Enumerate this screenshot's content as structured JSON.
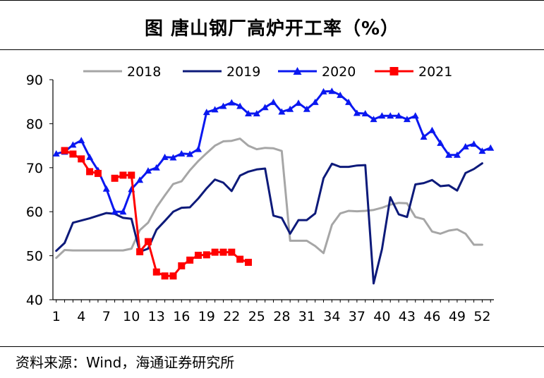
{
  "title": "图  唐山钢厂高炉开工率（%）",
  "source": "资料来源：Wind，海通证券研究所",
  "chart_data": {
    "type": "line",
    "title": "唐山钢厂高炉开工率（%）",
    "xlabel": "",
    "ylabel": "",
    "ylim": [
      40,
      90
    ],
    "yticks": [
      40,
      50,
      60,
      70,
      80,
      90
    ],
    "xlim": [
      1,
      53
    ],
    "xticks": [
      1,
      4,
      7,
      10,
      13,
      16,
      19,
      22,
      25,
      28,
      31,
      34,
      37,
      40,
      43,
      46,
      49,
      52
    ],
    "grid": false,
    "legend": "top",
    "series": [
      {
        "name": "2018",
        "color": "#a6a6a6",
        "marker": "none",
        "x": [
          1,
          2,
          3,
          4,
          5,
          6,
          7,
          8,
          9,
          10,
          11,
          12,
          13,
          14,
          15,
          16,
          17,
          18,
          19,
          20,
          21,
          22,
          23,
          24,
          25,
          26,
          27,
          28,
          29,
          30,
          31,
          32,
          33,
          34,
          35,
          36,
          37,
          38,
          39,
          40,
          41,
          42,
          43,
          44,
          45,
          46,
          47,
          48,
          49,
          50,
          51,
          52
        ],
        "values": [
          49.5,
          51.3,
          51.2,
          51.2,
          51.2,
          51.2,
          51.2,
          51.2,
          51.2,
          51.6,
          55.8,
          57.5,
          61.0,
          63.7,
          66.3,
          66.9,
          69.4,
          71.5,
          73.3,
          75.0,
          76.0,
          76.1,
          76.6,
          75.0,
          74.2,
          74.5,
          74.4,
          73.8,
          53.4,
          53.4,
          53.4,
          52.2,
          50.6,
          57.0,
          59.6,
          60.2,
          60.1,
          60.2,
          60.4,
          60.9,
          61.6,
          62.0,
          61.9,
          58.8,
          58.3,
          55.5,
          55.0,
          55.7,
          56.0,
          55.0,
          52.5,
          52.5
        ]
      },
      {
        "name": "2019",
        "color": "#0d1a7a",
        "marker": "none",
        "x": [
          1,
          2,
          3,
          4,
          5,
          6,
          7,
          8,
          9,
          10,
          11,
          12,
          13,
          14,
          15,
          16,
          17,
          18,
          19,
          20,
          21,
          22,
          23,
          24,
          25,
          26,
          27,
          28,
          29,
          30,
          31,
          32,
          33,
          34,
          35,
          36,
          37,
          38,
          39,
          40,
          41,
          42,
          43,
          44,
          45,
          46,
          47,
          48,
          49,
          50,
          51,
          52
        ],
        "values": [
          51.1,
          52.9,
          57.5,
          58.0,
          58.5,
          59.1,
          59.7,
          59.5,
          58.6,
          58.4,
          50.9,
          51.6,
          55.9,
          57.9,
          60.0,
          60.9,
          61.0,
          63.0,
          65.3,
          67.3,
          66.6,
          64.7,
          68.2,
          69.1,
          69.6,
          69.8,
          59.1,
          58.6,
          55.0,
          58.1,
          58.1,
          59.6,
          67.6,
          70.9,
          70.2,
          70.2,
          70.5,
          70.6,
          43.7,
          51.5,
          63.3,
          59.4,
          58.8,
          66.2,
          66.5,
          67.2,
          65.8,
          66.0,
          64.8,
          68.8,
          69.7,
          71.0
        ]
      },
      {
        "name": "2020",
        "color": "#0a18f0",
        "marker": "triangle",
        "x": [
          1,
          2,
          3,
          4,
          5,
          6,
          7,
          8,
          9,
          10,
          11,
          12,
          13,
          14,
          15,
          16,
          17,
          18,
          19,
          20,
          21,
          22,
          23,
          24,
          25,
          26,
          27,
          28,
          29,
          30,
          31,
          32,
          33,
          34,
          35,
          36,
          37,
          38,
          39,
          40,
          41,
          42,
          43,
          44,
          45,
          46,
          47,
          48,
          49,
          50,
          51,
          52,
          53
        ],
        "values": [
          73.2,
          73.6,
          75.2,
          76.2,
          72.4,
          69.4,
          65.2,
          60.0,
          60.0,
          65.1,
          67.2,
          69.3,
          70.0,
          72.4,
          72.3,
          73.2,
          73.1,
          74.2,
          82.6,
          83.2,
          84.0,
          84.8,
          84.0,
          82.3,
          82.3,
          83.7,
          84.9,
          82.7,
          83.3,
          84.7,
          83.3,
          84.9,
          87.3,
          87.4,
          86.5,
          84.9,
          82.4,
          82.3,
          81.0,
          81.8,
          81.8,
          81.8,
          81.0,
          81.8,
          77.0,
          78.5,
          75.6,
          72.9,
          72.9,
          74.8,
          75.4,
          73.8,
          74.5
        ]
      },
      {
        "name": "2021",
        "color": "#ff0000",
        "marker": "square",
        "x": [
          1,
          2,
          3,
          4,
          5,
          6,
          7,
          8,
          9,
          10,
          11,
          12,
          13,
          14,
          15,
          16,
          17,
          18,
          19,
          20,
          21,
          22,
          23,
          24
        ],
        "values": [
          null,
          73.9,
          73.1,
          72.0,
          69.1,
          68.7,
          null,
          67.6,
          68.3,
          68.3,
          50.9,
          53.2,
          46.3,
          45.4,
          45.4,
          47.7,
          49.0,
          50.1,
          50.2,
          50.8,
          50.8,
          50.8,
          49.2,
          48.5
        ]
      }
    ]
  }
}
